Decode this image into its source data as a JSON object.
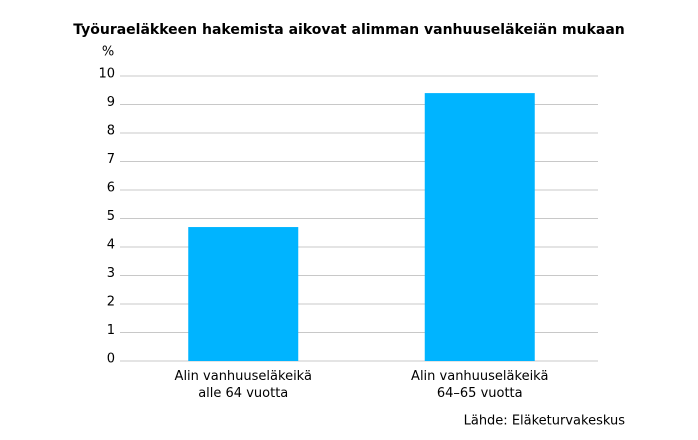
{
  "chart_data": {
    "type": "bar",
    "title": "Työuraeläkkeen hakemista aikovat alimman vanhuuseläkeiän mukaan",
    "y_label": "%",
    "categories": [
      [
        "Alin vanhuuseläkeikä",
        "alle 64 vuotta"
      ],
      [
        "Alin vanhuuseläkeikä",
        "64–65 vuotta"
      ]
    ],
    "values": [
      4.7,
      9.4
    ],
    "color": "#00b4ff",
    "ylim": [
      0,
      10
    ],
    "yticks": [
      0,
      1,
      2,
      3,
      4,
      5,
      6,
      7,
      8,
      9,
      10
    ],
    "grid": true,
    "source": "Lähde: Eläketurvakeskus"
  }
}
